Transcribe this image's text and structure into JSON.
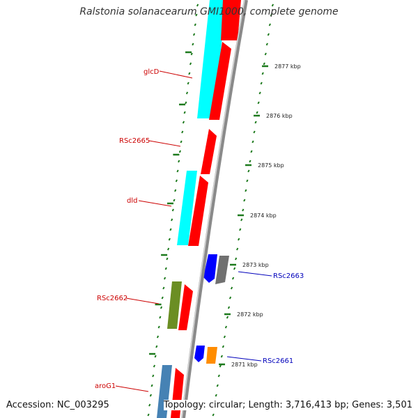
{
  "title": "Ralstonia solanacearum GMI1000, complete genome",
  "accession": "Accession: NC_003295",
  "topology": "Topology: circular; Length: 3,716,413 bp; Genes: 3,501",
  "colors": {
    "backbone": "#8a8a8a",
    "tick": "#1d7a1d",
    "forward_label": "#cc0000",
    "reverse_label": "#0000bb",
    "cds": "#ff0000",
    "rna": "#00ffff",
    "olive": "#6b8e23",
    "steel": "#4682b4",
    "blue": "#0000ff",
    "grey": "#707070",
    "orange": "#ff8c00"
  },
  "kbp_ticks": [
    {
      "label": "2877 kbp"
    },
    {
      "label": "2876 kbp"
    },
    {
      "label": "2875 kbp"
    },
    {
      "label": "2874 kbp"
    },
    {
      "label": "2873 kbp"
    },
    {
      "label": "2872 kbp"
    },
    {
      "label": "2871 kbp"
    }
  ],
  "gene_labels": [
    {
      "text": "glcD",
      "strand": "forward"
    },
    {
      "text": "RSc2665",
      "strand": "forward"
    },
    {
      "text": "dld",
      "strand": "forward"
    },
    {
      "text": "RSc2663",
      "strand": "reverse"
    },
    {
      "text": "RSc2662",
      "strand": "forward"
    },
    {
      "text": "RSc2661",
      "strand": "reverse"
    },
    {
      "text": "aroG1",
      "strand": "forward"
    }
  ]
}
